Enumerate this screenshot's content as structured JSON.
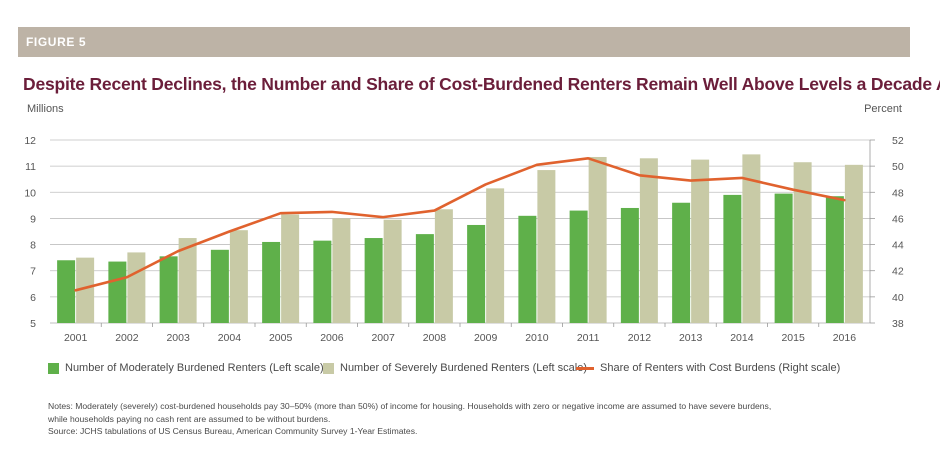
{
  "figure_label": "FIGURE 5",
  "title": "Despite Recent Declines, the Number and Share of Cost-Burdened Renters Remain Well Above Levels a Decade Ago",
  "left_axis_label": "Millions",
  "right_axis_label": "Percent",
  "notes": {
    "line1": "Notes: Moderately (severely) cost-burdened households pay 30–50% (more than 50%) of income for housing. Households with zero or negative income are assumed to have severe burdens,",
    "line2": "while households paying no cash rent are assumed to be without burdens.",
    "source": "Source: JCHS tabulations of US Census Bureau, American Community Survey 1-Year Estimates."
  },
  "colors": {
    "moderate": "#5fb04a",
    "severe": "#c8caa6",
    "share": "#e0622e",
    "title": "#6b1e3a",
    "band": "#bdb3a6",
    "grid": "#bfbfbf"
  },
  "chart_data": {
    "type": "bar",
    "categories": [
      "2001",
      "2002",
      "2003",
      "2004",
      "2005",
      "2006",
      "2007",
      "2008",
      "2009",
      "2010",
      "2011",
      "2012",
      "2013",
      "2014",
      "2015",
      "2016"
    ],
    "series": [
      {
        "name": "Number of Moderately Burdened Renters (Left scale)",
        "kind": "bar",
        "axis": "left",
        "values": [
          7.4,
          7.35,
          7.55,
          7.8,
          8.1,
          8.15,
          8.25,
          8.4,
          8.75,
          9.1,
          9.3,
          9.4,
          9.6,
          9.9,
          9.95,
          9.85
        ]
      },
      {
        "name": "Number of Severely Burdened Renters (Left scale)",
        "kind": "bar",
        "axis": "left",
        "values": [
          7.5,
          7.7,
          8.25,
          8.55,
          9.15,
          9.0,
          8.95,
          9.35,
          10.15,
          10.85,
          11.35,
          11.3,
          11.25,
          11.45,
          11.15,
          11.05
        ]
      },
      {
        "name": "Share of Renters with Cost Burdens (Right scale)",
        "kind": "line",
        "axis": "right",
        "values": [
          40.5,
          41.5,
          43.5,
          45.0,
          46.4,
          46.5,
          46.1,
          46.6,
          48.6,
          50.1,
          50.6,
          49.3,
          48.9,
          49.1,
          48.2,
          47.4
        ]
      }
    ],
    "left_axis": {
      "min": 5,
      "max": 12,
      "ticks": [
        5,
        6,
        7,
        8,
        9,
        10,
        11,
        12
      ]
    },
    "right_axis": {
      "min": 38,
      "max": 52,
      "ticks": [
        38,
        40,
        42,
        44,
        46,
        48,
        50,
        52
      ]
    },
    "grid": true,
    "legend_position": "bottom"
  }
}
